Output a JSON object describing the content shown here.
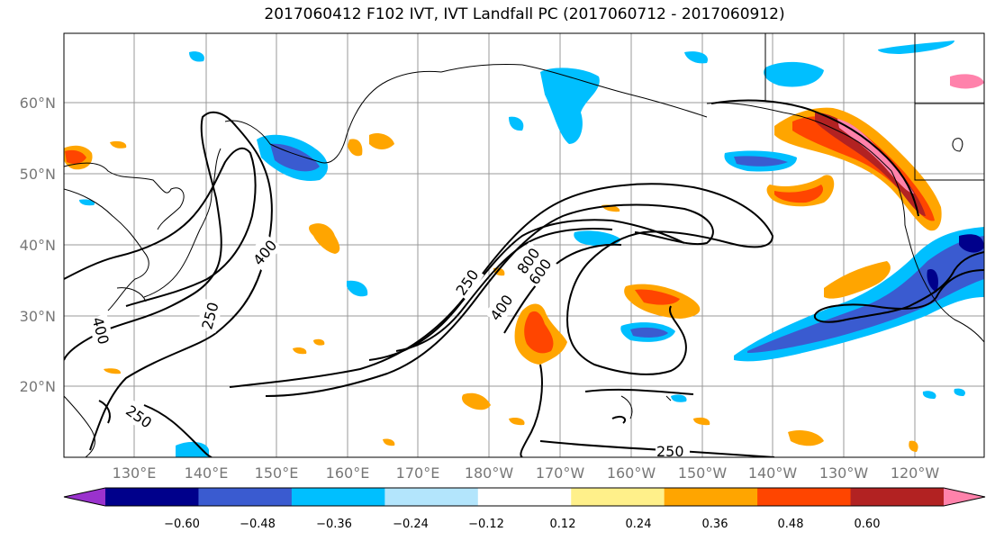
{
  "title": "2017060412 F102 IVT, IVT Landfall PC (2017060712 - 2017060912)",
  "lat_labels": [
    "60°N",
    "50°N",
    "40°N",
    "30°N",
    "20°N"
  ],
  "lon_labels": [
    "130°E",
    "140°E",
    "150°E",
    "160°E",
    "170°E",
    "180°W",
    "170°W",
    "160°W",
    "150°W",
    "140°W",
    "130°W",
    "120°W"
  ],
  "contour_labels": [
    "400",
    "250",
    "400",
    "250",
    "250",
    "400",
    "800",
    "600",
    "250"
  ],
  "colorbar": {
    "ticks": [
      "−0.60",
      "−0.48",
      "−0.36",
      "−0.24",
      "−0.12",
      "0.12",
      "0.24",
      "0.36",
      "0.48",
      "0.60"
    ],
    "colors": [
      "#9a32cd",
      "#00008b",
      "#3a5bd0",
      "#00bfff",
      "#b3e5fc",
      "#ffffff",
      "#fff08a",
      "#ffa500",
      "#ff4500",
      "#b22222",
      "#ff82ab"
    ]
  },
  "colors": {
    "coast": "#000000",
    "grid": "#999999",
    "contour": "#000000"
  }
}
